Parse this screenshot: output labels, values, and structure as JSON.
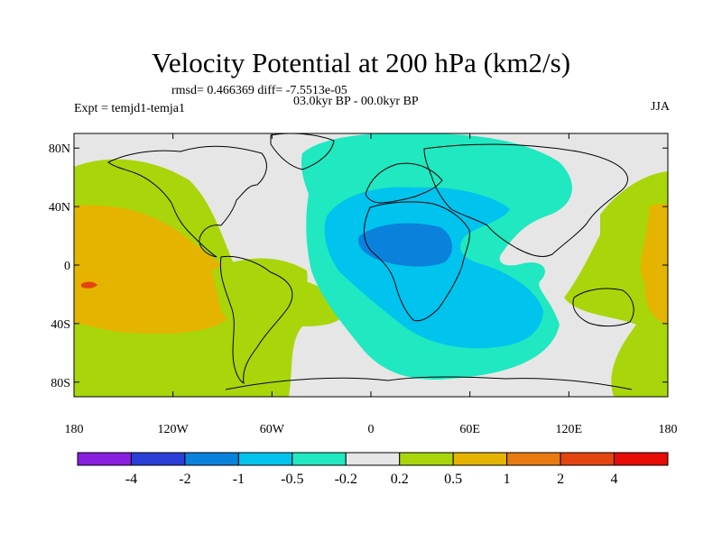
{
  "title": "Velocity Potential at 200 hPa (km2/s)",
  "stats_line": "rmsd= 0.466369 diff= -7.5513e-05",
  "experiment": "Expt = temjd1-temja1",
  "period": "03.0kyr BP - 00.0kyr BP",
  "season": "JJA",
  "lat_ticks": [
    {
      "value": 80,
      "label": "80N"
    },
    {
      "value": 40,
      "label": "40N"
    },
    {
      "value": 0,
      "label": "0"
    },
    {
      "value": -40,
      "label": "40S"
    },
    {
      "value": -80,
      "label": "80S"
    }
  ],
  "lon_ticks": [
    {
      "value": -180,
      "label": "180"
    },
    {
      "value": -120,
      "label": "120W"
    },
    {
      "value": -60,
      "label": "60W"
    },
    {
      "value": 0,
      "label": "0"
    },
    {
      "value": 60,
      "label": "60E"
    },
    {
      "value": 120,
      "label": "120E"
    },
    {
      "value": 180,
      "label": "180"
    }
  ],
  "colorbar": {
    "colors": [
      "#8a1ee0",
      "#2a3ed8",
      "#0a82dc",
      "#00c3ee",
      "#20e8c0",
      "#e6e6e6",
      "#a8d60a",
      "#e4b400",
      "#e87a12",
      "#e44410",
      "#e80c06"
    ],
    "levels": [
      "-4",
      "-2",
      "-1",
      "-0.5",
      "-0.2",
      "0.2",
      "0.5",
      "1",
      "2",
      "4"
    ]
  },
  "map_colors": {
    "neutral": "#e6e6e6",
    "pos_light": "#a8d60a",
    "pos_mid": "#e4b400",
    "pos_strong": "#e87a12",
    "pos_max": "#e44410",
    "neg_light": "#20e8c0",
    "neg_mid": "#00c3ee",
    "neg_strong": "#0a82dc"
  }
}
